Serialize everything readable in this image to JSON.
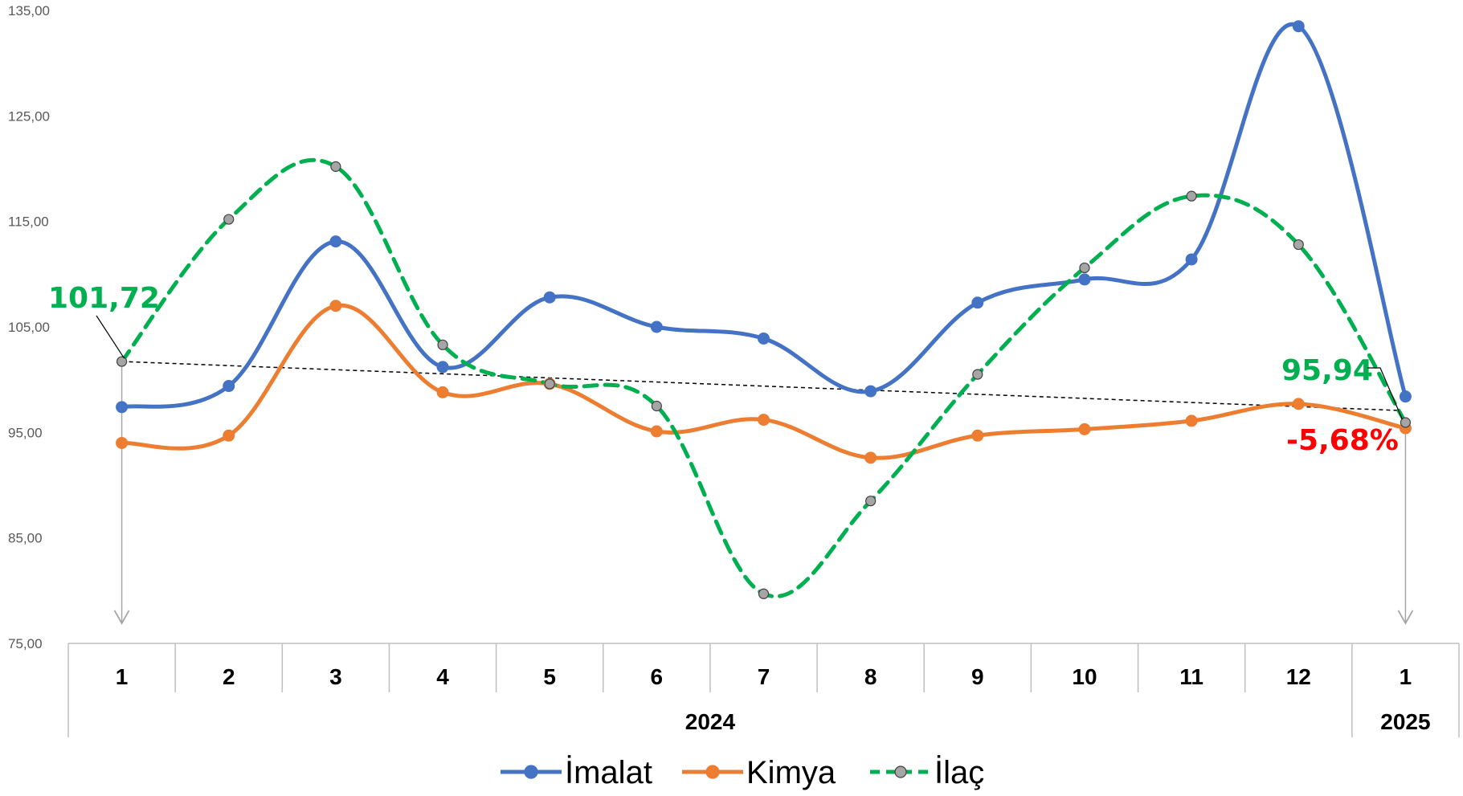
{
  "chart_data": {
    "type": "line",
    "categories": [
      "1",
      "2",
      "3",
      "4",
      "5",
      "6",
      "7",
      "8",
      "9",
      "10",
      "11",
      "12",
      "1"
    ],
    "year_groups": [
      {
        "label": "2024",
        "from": 0,
        "to": 11
      },
      {
        "label": "2025",
        "from": 12,
        "to": 12
      }
    ],
    "ylim": [
      75,
      135
    ],
    "yticks": [
      75,
      85,
      95,
      105,
      115,
      125,
      135
    ],
    "ytick_labels": [
      "75,00",
      "85,00",
      "95,00",
      "105,00",
      "115,00",
      "125,00",
      "135,00"
    ],
    "series": [
      {
        "name": "İmalat",
        "color": "#4472C4",
        "style": "solid",
        "marker": "#4472C4",
        "values": [
          97.4,
          99.4,
          113.1,
          101.2,
          107.8,
          105.0,
          103.9,
          98.9,
          107.3,
          109.5,
          111.4,
          133.5,
          98.4
        ]
      },
      {
        "name": "Kimya",
        "color": "#ED7D31",
        "style": "solid",
        "marker": "#ED7D31",
        "values": [
          94.0,
          94.7,
          107.0,
          98.8,
          99.6,
          95.1,
          96.2,
          92.6,
          94.7,
          95.3,
          96.1,
          97.7,
          95.4
        ]
      },
      {
        "name": "İlaç",
        "color": "#00B050",
        "style": "dashed",
        "marker": "#A5A5A5",
        "values": [
          101.72,
          115.2,
          120.2,
          103.3,
          99.6,
          97.5,
          79.7,
          88.5,
          100.5,
          110.6,
          117.4,
          112.8,
          95.94
        ]
      }
    ],
    "trendline": {
      "from": 101.72,
      "to": 95.94,
      "color": "#000000"
    },
    "annotations": {
      "start_value": "101,72",
      "end_value": "95,94",
      "change": "-5,68%"
    },
    "colors": {
      "green_text": "#00B050",
      "red_text": "#FF0000"
    }
  }
}
